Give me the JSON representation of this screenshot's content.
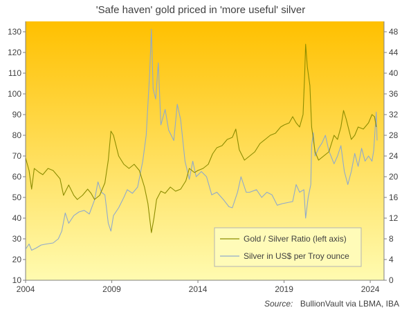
{
  "title": "'Safe haven'  gold priced in 'more useful'  silver",
  "source": {
    "label": "Source:",
    "text": "BullionVault via  LBMA, IBA"
  },
  "chart_data": {
    "type": "line",
    "title": "'Safe haven'  gold priced in 'more useful'  silver",
    "x_range": [
      2004,
      2024.8
    ],
    "x_ticks": [
      2004,
      2009,
      2014,
      2019,
      2024
    ],
    "y_left": {
      "range": [
        10,
        135
      ],
      "ticks": [
        10,
        20,
        30,
        40,
        50,
        60,
        70,
        80,
        90,
        100,
        110,
        120,
        130
      ]
    },
    "y_right": {
      "range": [
        0,
        50
      ],
      "ticks": [
        0,
        4,
        8,
        12,
        16,
        20,
        24,
        28,
        32,
        36,
        40,
        44,
        48
      ]
    },
    "grid": false,
    "legend_position": "bottom-right",
    "background": {
      "gradient_top": "#ffc000",
      "gradient_bottom": "#fffbb0"
    },
    "series": [
      {
        "name": "Gold / Silver Ratio (left axis)",
        "axis": "left",
        "color": "#8c8c00",
        "points": [
          [
            2004.0,
            69
          ],
          [
            2004.2,
            63
          ],
          [
            2004.35,
            54
          ],
          [
            2004.5,
            64
          ],
          [
            2004.8,
            62
          ],
          [
            2005.0,
            61
          ],
          [
            2005.3,
            64
          ],
          [
            2005.6,
            63
          ],
          [
            2006.0,
            59
          ],
          [
            2006.2,
            51
          ],
          [
            2006.5,
            56
          ],
          [
            2006.8,
            51
          ],
          [
            2007.0,
            49
          ],
          [
            2007.3,
            51
          ],
          [
            2007.6,
            54
          ],
          [
            2007.8,
            52
          ],
          [
            2008.0,
            49
          ],
          [
            2008.3,
            51
          ],
          [
            2008.6,
            57
          ],
          [
            2008.8,
            68
          ],
          [
            2008.95,
            82
          ],
          [
            2009.1,
            80
          ],
          [
            2009.4,
            70
          ],
          [
            2009.7,
            66
          ],
          [
            2010.0,
            64
          ],
          [
            2010.3,
            66
          ],
          [
            2010.6,
            63
          ],
          [
            2010.9,
            55
          ],
          [
            2011.1,
            47
          ],
          [
            2011.3,
            33
          ],
          [
            2011.45,
            40
          ],
          [
            2011.6,
            49
          ],
          [
            2011.85,
            53
          ],
          [
            2012.1,
            52
          ],
          [
            2012.4,
            55
          ],
          [
            2012.7,
            53
          ],
          [
            2013.0,
            54
          ],
          [
            2013.3,
            58
          ],
          [
            2013.5,
            64
          ],
          [
            2013.8,
            62
          ],
          [
            2014.0,
            63
          ],
          [
            2014.3,
            64
          ],
          [
            2014.6,
            66
          ],
          [
            2014.85,
            71
          ],
          [
            2015.1,
            74
          ],
          [
            2015.4,
            75
          ],
          [
            2015.7,
            78
          ],
          [
            2016.0,
            79
          ],
          [
            2016.2,
            83
          ],
          [
            2016.4,
            73
          ],
          [
            2016.7,
            68
          ],
          [
            2017.0,
            70
          ],
          [
            2017.3,
            72
          ],
          [
            2017.6,
            76
          ],
          [
            2017.9,
            78
          ],
          [
            2018.2,
            80
          ],
          [
            2018.5,
            81
          ],
          [
            2018.8,
            84
          ],
          [
            2019.0,
            85
          ],
          [
            2019.3,
            86
          ],
          [
            2019.5,
            89
          ],
          [
            2019.7,
            86
          ],
          [
            2019.9,
            84
          ],
          [
            2020.1,
            90
          ],
          [
            2020.2,
            110
          ],
          [
            2020.25,
            124
          ],
          [
            2020.35,
            113
          ],
          [
            2020.5,
            104
          ],
          [
            2020.6,
            84
          ],
          [
            2020.8,
            72
          ],
          [
            2021.0,
            68
          ],
          [
            2021.3,
            70
          ],
          [
            2021.6,
            72
          ],
          [
            2021.9,
            80
          ],
          [
            2022.1,
            78
          ],
          [
            2022.3,
            84
          ],
          [
            2022.45,
            92
          ],
          [
            2022.6,
            88
          ],
          [
            2022.9,
            78
          ],
          [
            2023.1,
            80
          ],
          [
            2023.3,
            84
          ],
          [
            2023.6,
            83
          ],
          [
            2023.9,
            86
          ],
          [
            2024.1,
            90
          ],
          [
            2024.25,
            89
          ],
          [
            2024.35,
            84
          ]
        ]
      },
      {
        "name": "Silver in US$ per Troy ounce",
        "axis": "right",
        "color": "#8fa9cc",
        "points": [
          [
            2004.0,
            6.0
          ],
          [
            2004.2,
            7.0
          ],
          [
            2004.35,
            5.8
          ],
          [
            2004.6,
            6.2
          ],
          [
            2004.9,
            6.8
          ],
          [
            2005.2,
            7.0
          ],
          [
            2005.6,
            7.2
          ],
          [
            2005.9,
            8.0
          ],
          [
            2006.1,
            9.5
          ],
          [
            2006.3,
            13.0
          ],
          [
            2006.5,
            11.0
          ],
          [
            2006.8,
            12.5
          ],
          [
            2007.1,
            13.2
          ],
          [
            2007.4,
            13.5
          ],
          [
            2007.7,
            12.8
          ],
          [
            2008.0,
            15.5
          ],
          [
            2008.2,
            19.0
          ],
          [
            2008.4,
            17.0
          ],
          [
            2008.6,
            16.5
          ],
          [
            2008.8,
            11.0
          ],
          [
            2008.95,
            9.5
          ],
          [
            2009.1,
            12.5
          ],
          [
            2009.4,
            14.0
          ],
          [
            2009.7,
            16.0
          ],
          [
            2009.9,
            17.5
          ],
          [
            2010.2,
            16.8
          ],
          [
            2010.5,
            18.0
          ],
          [
            2010.8,
            23.0
          ],
          [
            2011.0,
            28.0
          ],
          [
            2011.2,
            40.0
          ],
          [
            2011.3,
            48.5
          ],
          [
            2011.4,
            37.0
          ],
          [
            2011.55,
            35.0
          ],
          [
            2011.7,
            42.0
          ],
          [
            2011.85,
            30.0
          ],
          [
            2012.1,
            33.0
          ],
          [
            2012.3,
            29.0
          ],
          [
            2012.6,
            27.0
          ],
          [
            2012.8,
            34.0
          ],
          [
            2013.0,
            31.0
          ],
          [
            2013.25,
            23.0
          ],
          [
            2013.5,
            19.5
          ],
          [
            2013.7,
            23.0
          ],
          [
            2013.9,
            20.0
          ],
          [
            2014.2,
            21.0
          ],
          [
            2014.5,
            20.0
          ],
          [
            2014.8,
            16.5
          ],
          [
            2015.1,
            17.0
          ],
          [
            2015.5,
            15.5
          ],
          [
            2015.8,
            14.2
          ],
          [
            2016.0,
            14.0
          ],
          [
            2016.3,
            17.0
          ],
          [
            2016.5,
            20.0
          ],
          [
            2016.8,
            17.0
          ],
          [
            2017.0,
            17.0
          ],
          [
            2017.4,
            17.5
          ],
          [
            2017.7,
            16.0
          ],
          [
            2018.0,
            17.0
          ],
          [
            2018.3,
            16.5
          ],
          [
            2018.6,
            14.5
          ],
          [
            2018.9,
            14.8
          ],
          [
            2019.2,
            15.0
          ],
          [
            2019.5,
            15.2
          ],
          [
            2019.7,
            18.5
          ],
          [
            2019.9,
            17.0
          ],
          [
            2020.15,
            17.5
          ],
          [
            2020.25,
            12.0
          ],
          [
            2020.4,
            16.0
          ],
          [
            2020.55,
            18.5
          ],
          [
            2020.6,
            26.0
          ],
          [
            2020.7,
            28.5
          ],
          [
            2020.8,
            24.0
          ],
          [
            2021.0,
            25.5
          ],
          [
            2021.2,
            26.5
          ],
          [
            2021.4,
            28.0
          ],
          [
            2021.6,
            25.0
          ],
          [
            2021.9,
            22.5
          ],
          [
            2022.1,
            24.0
          ],
          [
            2022.3,
            26.0
          ],
          [
            2022.5,
            21.0
          ],
          [
            2022.7,
            18.5
          ],
          [
            2022.9,
            21.0
          ],
          [
            2023.1,
            24.5
          ],
          [
            2023.3,
            22.0
          ],
          [
            2023.5,
            25.5
          ],
          [
            2023.7,
            23.0
          ],
          [
            2023.9,
            24.0
          ],
          [
            2024.1,
            23.0
          ],
          [
            2024.2,
            25.0
          ],
          [
            2024.3,
            30.0
          ],
          [
            2024.35,
            32.5
          ],
          [
            2024.4,
            27.0
          ]
        ]
      }
    ]
  }
}
